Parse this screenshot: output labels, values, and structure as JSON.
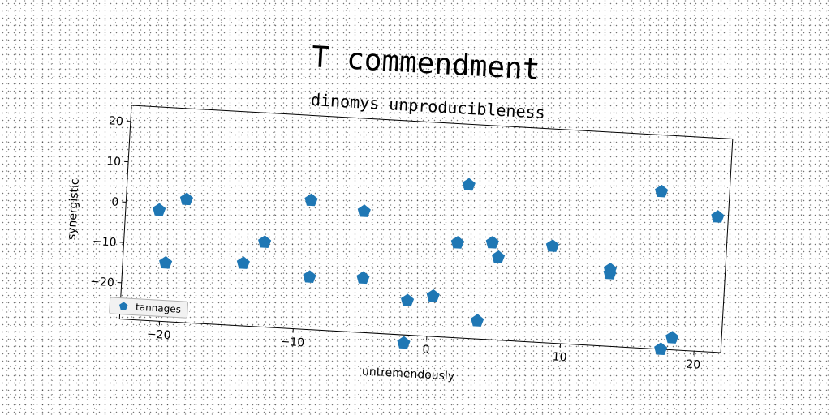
{
  "chart_data": {
    "type": "scatter",
    "title": "T commendment",
    "subtitle": "dinomys unproducibleness",
    "xlabel": "untremendously",
    "ylabel": "synergistic",
    "xlim": [
      -23,
      22
    ],
    "ylim": [
      -29,
      24
    ],
    "xticks": [
      -20,
      -10,
      0,
      10,
      20
    ],
    "xtick_labels": [
      "−20",
      "−10",
      "0",
      "10",
      "20"
    ],
    "yticks": [
      20,
      10,
      0,
      -10,
      -20
    ],
    "ytick_labels": [
      "20",
      "10",
      "0",
      "−10",
      "−20"
    ],
    "grid": false,
    "legend_position": "lower-left",
    "color": "#1f77b4",
    "marker": "pentagon",
    "series": [
      {
        "name": "tannages",
        "x": [
          -20.5,
          -18.5,
          -19.8,
          -14.0,
          -12.5,
          -9.2,
          -9.0,
          -5.2,
          -5.0,
          -1.6,
          0.3,
          -1.7,
          1.9,
          2.5,
          4.5,
          5.0,
          3.7,
          9.0,
          13.4,
          13.4,
          16.9,
          21.2,
          17.5,
          18.3
        ],
        "y": [
          -1.5,
          1.5,
          -14.5,
          -13.5,
          -8.0,
          3.0,
          -16.0,
          1.0,
          -15.5,
          -20.5,
          -19.0,
          -31.0,
          -5.5,
          9.0,
          -5.0,
          -8.5,
          -24.5,
          -5.0,
          -10.0,
          -11.0,
          10.0,
          4.5,
          -29.0,
          -26.0
        ]
      }
    ]
  }
}
